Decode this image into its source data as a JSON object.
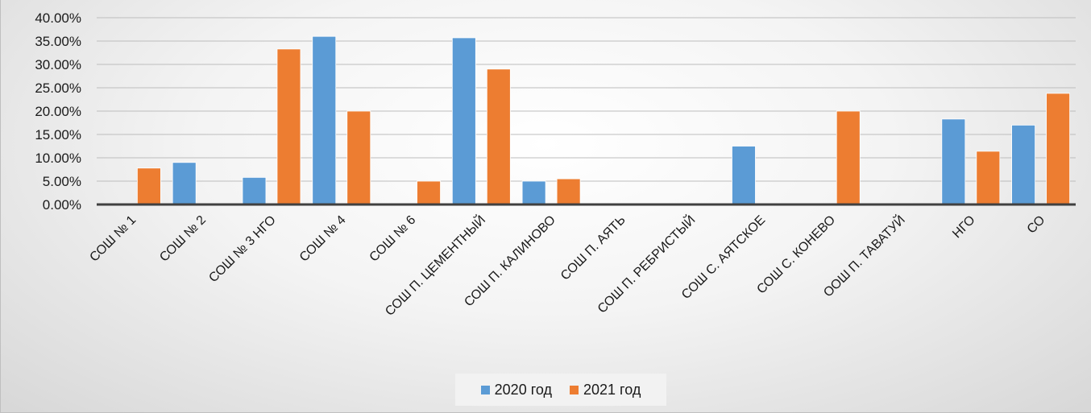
{
  "chart_data": {
    "type": "bar",
    "title": "",
    "xlabel": "",
    "ylabel": "",
    "ylim": [
      0,
      0.4
    ],
    "y_ticks": [
      "0.00%",
      "5.00%",
      "10.00%",
      "15.00%",
      "20.00%",
      "25.00%",
      "30.00%",
      "35.00%",
      "40.00%"
    ],
    "grid": true,
    "legend_position": "bottom",
    "categories": [
      "СОШ № 1",
      "СОШ № 2",
      "СОШ № 3 НГО",
      "СОШ № 4",
      "СОШ № 6",
      "СОШ П. ЦЕМЕНТНЫЙ",
      "СОШ П. КАЛИНОВО",
      "СОШ П. АЯТЬ",
      "СОШ П. РЕБРИСТЫЙ",
      "СОШ С. АЯТСКОЕ",
      "СОШ С. КОНЕВО",
      "ООШ П. ТАВАТУЙ",
      "НГО",
      "СО"
    ],
    "series": [
      {
        "name": "2020 год",
        "color": "#5b9bd5",
        "values": [
          0,
          0.09,
          0.058,
          0.36,
          0,
          0.357,
          0.05,
          0,
          0,
          0.125,
          0,
          0,
          0.183,
          0.17
        ]
      },
      {
        "name": "2021 год",
        "color": "#ed7d31",
        "values": [
          0.078,
          0,
          0.333,
          0.2,
          0.05,
          0.29,
          0.055,
          0,
          0,
          0,
          0.2,
          0,
          0.114,
          0.238
        ]
      }
    ]
  }
}
